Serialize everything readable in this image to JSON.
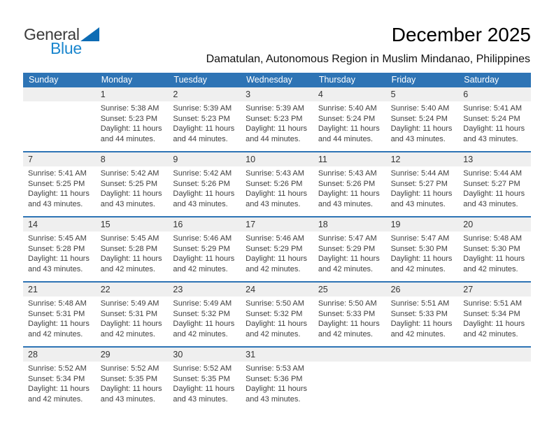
{
  "logo": {
    "general": "General",
    "blue": "Blue"
  },
  "title": "December 2025",
  "subtitle": "Damatulan, Autonomous Region in Muslim Mindanao, Philippines",
  "colors": {
    "header_bg": "#2E74B5",
    "divider": "#2E74B5",
    "date_band_bg": "#EFEFEF",
    "logo_blue": "#1A86CE",
    "logo_triangle": "#0D6CB4"
  },
  "weekday_headers": [
    "Sunday",
    "Monday",
    "Tuesday",
    "Wednesday",
    "Thursday",
    "Friday",
    "Saturday"
  ],
  "weeks": [
    [
      {
        "date": "",
        "lines": []
      },
      {
        "date": "1",
        "lines": [
          "Sunrise: 5:38 AM",
          "Sunset: 5:23 PM",
          "Daylight: 11 hours",
          "and 44 minutes."
        ]
      },
      {
        "date": "2",
        "lines": [
          "Sunrise: 5:39 AM",
          "Sunset: 5:23 PM",
          "Daylight: 11 hours",
          "and 44 minutes."
        ]
      },
      {
        "date": "3",
        "lines": [
          "Sunrise: 5:39 AM",
          "Sunset: 5:23 PM",
          "Daylight: 11 hours",
          "and 44 minutes."
        ]
      },
      {
        "date": "4",
        "lines": [
          "Sunrise: 5:40 AM",
          "Sunset: 5:24 PM",
          "Daylight: 11 hours",
          "and 44 minutes."
        ]
      },
      {
        "date": "5",
        "lines": [
          "Sunrise: 5:40 AM",
          "Sunset: 5:24 PM",
          "Daylight: 11 hours",
          "and 43 minutes."
        ]
      },
      {
        "date": "6",
        "lines": [
          "Sunrise: 5:41 AM",
          "Sunset: 5:24 PM",
          "Daylight: 11 hours",
          "and 43 minutes."
        ]
      }
    ],
    [
      {
        "date": "7",
        "lines": [
          "Sunrise: 5:41 AM",
          "Sunset: 5:25 PM",
          "Daylight: 11 hours",
          "and 43 minutes."
        ]
      },
      {
        "date": "8",
        "lines": [
          "Sunrise: 5:42 AM",
          "Sunset: 5:25 PM",
          "Daylight: 11 hours",
          "and 43 minutes."
        ]
      },
      {
        "date": "9",
        "lines": [
          "Sunrise: 5:42 AM",
          "Sunset: 5:26 PM",
          "Daylight: 11 hours",
          "and 43 minutes."
        ]
      },
      {
        "date": "10",
        "lines": [
          "Sunrise: 5:43 AM",
          "Sunset: 5:26 PM",
          "Daylight: 11 hours",
          "and 43 minutes."
        ]
      },
      {
        "date": "11",
        "lines": [
          "Sunrise: 5:43 AM",
          "Sunset: 5:26 PM",
          "Daylight: 11 hours",
          "and 43 minutes."
        ]
      },
      {
        "date": "12",
        "lines": [
          "Sunrise: 5:44 AM",
          "Sunset: 5:27 PM",
          "Daylight: 11 hours",
          "and 43 minutes."
        ]
      },
      {
        "date": "13",
        "lines": [
          "Sunrise: 5:44 AM",
          "Sunset: 5:27 PM",
          "Daylight: 11 hours",
          "and 43 minutes."
        ]
      }
    ],
    [
      {
        "date": "14",
        "lines": [
          "Sunrise: 5:45 AM",
          "Sunset: 5:28 PM",
          "Daylight: 11 hours",
          "and 43 minutes."
        ]
      },
      {
        "date": "15",
        "lines": [
          "Sunrise: 5:45 AM",
          "Sunset: 5:28 PM",
          "Daylight: 11 hours",
          "and 42 minutes."
        ]
      },
      {
        "date": "16",
        "lines": [
          "Sunrise: 5:46 AM",
          "Sunset: 5:29 PM",
          "Daylight: 11 hours",
          "and 42 minutes."
        ]
      },
      {
        "date": "17",
        "lines": [
          "Sunrise: 5:46 AM",
          "Sunset: 5:29 PM",
          "Daylight: 11 hours",
          "and 42 minutes."
        ]
      },
      {
        "date": "18",
        "lines": [
          "Sunrise: 5:47 AM",
          "Sunset: 5:29 PM",
          "Daylight: 11 hours",
          "and 42 minutes."
        ]
      },
      {
        "date": "19",
        "lines": [
          "Sunrise: 5:47 AM",
          "Sunset: 5:30 PM",
          "Daylight: 11 hours",
          "and 42 minutes."
        ]
      },
      {
        "date": "20",
        "lines": [
          "Sunrise: 5:48 AM",
          "Sunset: 5:30 PM",
          "Daylight: 11 hours",
          "and 42 minutes."
        ]
      }
    ],
    [
      {
        "date": "21",
        "lines": [
          "Sunrise: 5:48 AM",
          "Sunset: 5:31 PM",
          "Daylight: 11 hours",
          "and 42 minutes."
        ]
      },
      {
        "date": "22",
        "lines": [
          "Sunrise: 5:49 AM",
          "Sunset: 5:31 PM",
          "Daylight: 11 hours",
          "and 42 minutes."
        ]
      },
      {
        "date": "23",
        "lines": [
          "Sunrise: 5:49 AM",
          "Sunset: 5:32 PM",
          "Daylight: 11 hours",
          "and 42 minutes."
        ]
      },
      {
        "date": "24",
        "lines": [
          "Sunrise: 5:50 AM",
          "Sunset: 5:32 PM",
          "Daylight: 11 hours",
          "and 42 minutes."
        ]
      },
      {
        "date": "25",
        "lines": [
          "Sunrise: 5:50 AM",
          "Sunset: 5:33 PM",
          "Daylight: 11 hours",
          "and 42 minutes."
        ]
      },
      {
        "date": "26",
        "lines": [
          "Sunrise: 5:51 AM",
          "Sunset: 5:33 PM",
          "Daylight: 11 hours",
          "and 42 minutes."
        ]
      },
      {
        "date": "27",
        "lines": [
          "Sunrise: 5:51 AM",
          "Sunset: 5:34 PM",
          "Daylight: 11 hours",
          "and 42 minutes."
        ]
      }
    ],
    [
      {
        "date": "28",
        "lines": [
          "Sunrise: 5:52 AM",
          "Sunset: 5:34 PM",
          "Daylight: 11 hours",
          "and 42 minutes."
        ]
      },
      {
        "date": "29",
        "lines": [
          "Sunrise: 5:52 AM",
          "Sunset: 5:35 PM",
          "Daylight: 11 hours",
          "and 43 minutes."
        ]
      },
      {
        "date": "30",
        "lines": [
          "Sunrise: 5:52 AM",
          "Sunset: 5:35 PM",
          "Daylight: 11 hours",
          "and 43 minutes."
        ]
      },
      {
        "date": "31",
        "lines": [
          "Sunrise: 5:53 AM",
          "Sunset: 5:36 PM",
          "Daylight: 11 hours",
          "and 43 minutes."
        ]
      },
      {
        "date": "",
        "lines": []
      },
      {
        "date": "",
        "lines": []
      },
      {
        "date": "",
        "lines": []
      }
    ]
  ]
}
